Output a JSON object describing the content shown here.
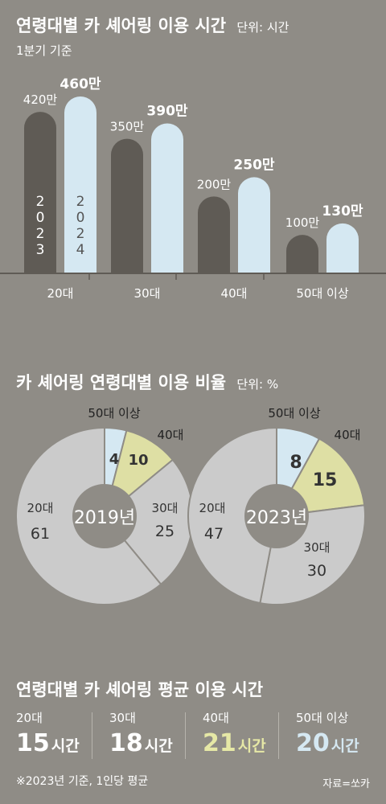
{
  "colors": {
    "dark": "#5f5b55",
    "light": "#d5e8f2",
    "gray": "#cbcbcb",
    "yellow": "#dedfa4",
    "text": "#ffffff",
    "darkText": "#222222"
  },
  "section1": {
    "title": "연령대별 카 셰어링 이용 시간",
    "unit": "단위: 시간",
    "subtitle": "1분기 기준"
  },
  "section2": {
    "title": "카 셰어링 연령대별 이용 비율",
    "unit": "단위: %"
  },
  "section3": {
    "title": "연령대별 카 셰어링 평균 이용 시간",
    "note": "※2023년 기준, 1인당 평균",
    "source": "자료=쏘카",
    "items": [
      {
        "label": "20대",
        "value": "15",
        "unit": "시간",
        "color": "#ffffff"
      },
      {
        "label": "30대",
        "value": "18",
        "unit": "시간",
        "color": "#ffffff"
      },
      {
        "label": "40대",
        "value": "21",
        "unit": "시간",
        "color": "#e6e8a6"
      },
      {
        "label": "50대 이상",
        "value": "20",
        "unit": "시간",
        "color": "#d5e8f2"
      }
    ]
  },
  "chart_data": [
    {
      "type": "bar",
      "categories": [
        "20대",
        "30대",
        "40대",
        "50대 이상"
      ],
      "series": [
        {
          "name": "2023",
          "values": [
            420,
            350,
            200,
            100
          ],
          "labels": [
            "420만",
            "350만",
            "200만",
            "100만"
          ]
        },
        {
          "name": "2024",
          "values": [
            460,
            390,
            250,
            130
          ],
          "labels": [
            "460만",
            "390만",
            "250만",
            "130만"
          ]
        }
      ],
      "ylim": [
        0,
        460
      ]
    },
    {
      "type": "pie",
      "center_label": "2019년",
      "slices": [
        {
          "label": "50대 이상",
          "value": 4
        },
        {
          "label": "40대",
          "value": 10
        },
        {
          "label": "30대",
          "value": 25
        },
        {
          "label": "20대",
          "value": 61
        }
      ]
    },
    {
      "type": "pie",
      "center_label": "2023년",
      "slices": [
        {
          "label": "50대 이상",
          "value": 8
        },
        {
          "label": "40대",
          "value": 15
        },
        {
          "label": "30대",
          "value": 30
        },
        {
          "label": "20대",
          "value": 47
        }
      ]
    }
  ]
}
